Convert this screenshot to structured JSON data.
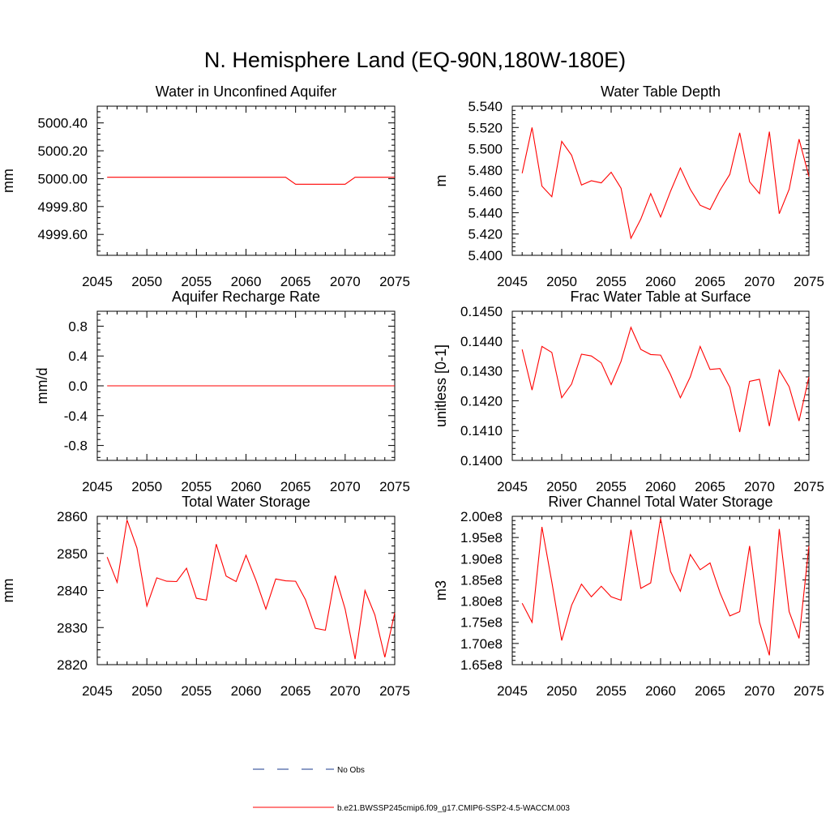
{
  "title": "N. Hemisphere Land (EQ-90N,180W-180E)",
  "colors": {
    "series": "#ff0000",
    "obs": "#1a3a8c",
    "frame": "#000000"
  },
  "legend": [
    {
      "label": "No Obs",
      "style": "dashed",
      "color": "#1a3a8c"
    },
    {
      "label": "b.e21.BWSSP245cmip6.f09_g17.CMIP6-SSP2-4.5-WACCM.003",
      "style": "solid",
      "color": "#ff0000"
    }
  ],
  "chart_data": [
    {
      "type": "line",
      "title": "Water in Unconfined Aquifer",
      "ylabel": "mm",
      "xlim": [
        2045,
        2075
      ],
      "ylim": [
        4999.45,
        5000.52
      ],
      "xticks": [
        2045,
        2050,
        2055,
        2060,
        2065,
        2070,
        2075
      ],
      "yticks": [
        4999.6,
        4999.8,
        5000.0,
        5000.2,
        5000.4
      ],
      "ytick_labels": [
        "4999.60",
        "4999.80",
        "5000.00",
        "5000.20",
        "5000.40"
      ],
      "x": [
        2046,
        2047,
        2048,
        2049,
        2050,
        2051,
        2052,
        2053,
        2054,
        2055,
        2056,
        2057,
        2058,
        2059,
        2060,
        2061,
        2062,
        2063,
        2064,
        2065,
        2066,
        2067,
        2068,
        2069,
        2070,
        2071,
        2072,
        2073,
        2074,
        2075
      ],
      "series": [
        {
          "values": [
            5000.01,
            5000.01,
            5000.01,
            5000.01,
            5000.01,
            5000.01,
            5000.01,
            5000.01,
            5000.01,
            5000.01,
            5000.01,
            5000.01,
            5000.01,
            5000.01,
            5000.01,
            5000.01,
            5000.01,
            5000.01,
            5000.01,
            4999.96,
            4999.96,
            4999.96,
            4999.96,
            4999.96,
            4999.96,
            5000.01,
            5000.01,
            5000.01,
            5000.01,
            5000.01
          ]
        }
      ]
    },
    {
      "type": "line",
      "title": "Water Table Depth",
      "ylabel": "m",
      "xlim": [
        2045,
        2075
      ],
      "ylim": [
        5.4,
        5.54
      ],
      "xticks": [
        2045,
        2050,
        2055,
        2060,
        2065,
        2070,
        2075
      ],
      "yticks": [
        5.4,
        5.42,
        5.44,
        5.46,
        5.48,
        5.5,
        5.52,
        5.54
      ],
      "ytick_labels": [
        "5.400",
        "5.420",
        "5.440",
        "5.460",
        "5.480",
        "5.500",
        "5.520",
        "5.540"
      ],
      "x": [
        2046,
        2047,
        2048,
        2049,
        2050,
        2051,
        2052,
        2053,
        2054,
        2055,
        2056,
        2057,
        2058,
        2059,
        2060,
        2061,
        2062,
        2063,
        2064,
        2065,
        2066,
        2067,
        2068,
        2069,
        2070,
        2071,
        2072,
        2073,
        2074,
        2075
      ],
      "series": [
        {
          "values": [
            5.477,
            5.52,
            5.465,
            5.455,
            5.507,
            5.494,
            5.466,
            5.47,
            5.468,
            5.478,
            5.463,
            5.416,
            5.434,
            5.458,
            5.436,
            5.46,
            5.482,
            5.462,
            5.447,
            5.443,
            5.461,
            5.476,
            5.515,
            5.469,
            5.458,
            5.516,
            5.439,
            5.462,
            5.509,
            5.474
          ]
        }
      ]
    },
    {
      "type": "line",
      "title": "Aquifer Recharge Rate",
      "ylabel": "mm/d",
      "xlim": [
        2045,
        2075
      ],
      "ylim": [
        -1.0,
        1.0
      ],
      "xticks": [
        2045,
        2050,
        2055,
        2060,
        2065,
        2070,
        2075
      ],
      "yticks": [
        -0.8,
        -0.4,
        0.0,
        0.4,
        0.8
      ],
      "ytick_labels": [
        "-0.8",
        "-0.4",
        "0.0",
        "0.4",
        "0.8"
      ],
      "x": [
        2046,
        2047,
        2048,
        2049,
        2050,
        2051,
        2052,
        2053,
        2054,
        2055,
        2056,
        2057,
        2058,
        2059,
        2060,
        2061,
        2062,
        2063,
        2064,
        2065,
        2066,
        2067,
        2068,
        2069,
        2070,
        2071,
        2072,
        2073,
        2074,
        2075
      ],
      "series": [
        {
          "values": [
            0,
            0,
            0,
            0,
            0,
            0,
            0,
            0,
            0,
            0,
            0,
            0,
            0,
            0,
            0,
            0,
            0,
            0,
            0,
            0,
            0,
            0,
            0,
            0,
            0,
            0,
            0,
            0,
            0,
            0
          ]
        }
      ]
    },
    {
      "type": "line",
      "title": "Frac Water Table at Surface",
      "ylabel": "unitless [0-1]",
      "xlim": [
        2045,
        2075
      ],
      "ylim": [
        0.14,
        0.145
      ],
      "xticks": [
        2045,
        2050,
        2055,
        2060,
        2065,
        2070,
        2075
      ],
      "yticks": [
        0.14,
        0.141,
        0.142,
        0.143,
        0.144,
        0.145
      ],
      "ytick_labels": [
        "0.1400",
        "0.1410",
        "0.1420",
        "0.1430",
        "0.1440",
        "0.1450"
      ],
      "x": [
        2046,
        2047,
        2048,
        2049,
        2050,
        2051,
        2052,
        2053,
        2054,
        2055,
        2056,
        2057,
        2058,
        2059,
        2060,
        2061,
        2062,
        2063,
        2064,
        2065,
        2066,
        2067,
        2068,
        2069,
        2070,
        2071,
        2072,
        2073,
        2074,
        2075
      ],
      "series": [
        {
          "values": [
            0.14372,
            0.14236,
            0.14382,
            0.14362,
            0.1421,
            0.14256,
            0.14356,
            0.1435,
            0.14327,
            0.14254,
            0.14332,
            0.14446,
            0.14372,
            0.14355,
            0.14353,
            0.14288,
            0.1421,
            0.1428,
            0.14382,
            0.14305,
            0.14308,
            0.14245,
            0.14095,
            0.14265,
            0.14272,
            0.14115,
            0.14303,
            0.14247,
            0.14132,
            0.1428
          ]
        }
      ]
    },
    {
      "type": "line",
      "title": "Total Water Storage",
      "ylabel": "mm",
      "xlim": [
        2045,
        2075
      ],
      "ylim": [
        2820,
        2860
      ],
      "xticks": [
        2045,
        2050,
        2055,
        2060,
        2065,
        2070,
        2075
      ],
      "yticks": [
        2820,
        2830,
        2840,
        2850,
        2860
      ],
      "ytick_labels": [
        "2820",
        "2830",
        "2840",
        "2850",
        "2860"
      ],
      "x": [
        2046,
        2047,
        2048,
        2049,
        2050,
        2051,
        2052,
        2053,
        2054,
        2055,
        2056,
        2057,
        2058,
        2059,
        2060,
        2061,
        2062,
        2063,
        2064,
        2065,
        2066,
        2067,
        2068,
        2069,
        2070,
        2071,
        2072,
        2073,
        2074,
        2075
      ],
      "series": [
        {
          "values": [
            2849,
            2842.2,
            2859,
            2851.5,
            2835.8,
            2843.4,
            2842.5,
            2842.4,
            2846,
            2837.9,
            2837.4,
            2852.5,
            2843.9,
            2842.4,
            2849.5,
            2842.8,
            2835,
            2843.1,
            2842.6,
            2842.5,
            2837.5,
            2829.8,
            2829.3,
            2844,
            2835,
            2821.5,
            2840,
            2833.4,
            2822,
            2834
          ]
        }
      ]
    },
    {
      "type": "line",
      "title": "River Channel Total Water Storage",
      "ylabel": "m3",
      "xlim": [
        2045,
        2075
      ],
      "ylim": [
        165000000,
        200000000
      ],
      "xticks": [
        2045,
        2050,
        2055,
        2060,
        2065,
        2070,
        2075
      ],
      "yticks": [
        165000000,
        170000000,
        175000000,
        180000000,
        185000000,
        190000000,
        195000000,
        200000000
      ],
      "ytick_labels": [
        "1.65e8",
        "1.70e8",
        "1.75e8",
        "1.80e8",
        "1.85e8",
        "1.90e8",
        "1.95e8",
        "2.00e8"
      ],
      "x": [
        2046,
        2047,
        2048,
        2049,
        2050,
        2051,
        2052,
        2053,
        2054,
        2055,
        2056,
        2057,
        2058,
        2059,
        2060,
        2061,
        2062,
        2063,
        2064,
        2065,
        2066,
        2067,
        2068,
        2069,
        2070,
        2071,
        2072,
        2073,
        2074,
        2075
      ],
      "series": [
        {
          "values": [
            179500000,
            175000000,
            197500000,
            184500000,
            170700000,
            179000000,
            184000000,
            181000000,
            183500000,
            181000000,
            180200000,
            196800000,
            183000000,
            184300000,
            199500000,
            187000000,
            182300000,
            191000000,
            187400000,
            189000000,
            182000000,
            176500000,
            177500000,
            193000000,
            175000000,
            167200000,
            197000000,
            177500000,
            171200000,
            193000000
          ]
        }
      ]
    }
  ]
}
